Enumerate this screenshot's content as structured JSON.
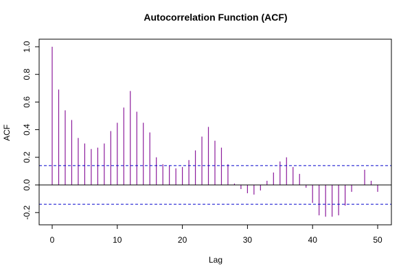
{
  "chart_data": {
    "type": "bar",
    "title": "Autocorrelation Function (ACF)",
    "xlabel": "Lag",
    "ylabel": "ACF",
    "xlim": [
      0,
      50
    ],
    "ylim": [
      -0.3,
      1.0
    ],
    "x_ticks": [
      0,
      10,
      20,
      30,
      40,
      50
    ],
    "y_ticks": [
      -0.2,
      0.0,
      0.2,
      0.4,
      0.6,
      0.8,
      1.0
    ],
    "x_tick_labels": [
      "0",
      "10",
      "20",
      "30",
      "40",
      "50"
    ],
    "y_tick_labels": [
      "-0.2",
      "0.0",
      "0.2",
      "0.4",
      "0.6",
      "0.8",
      "1.0"
    ],
    "confidence_bounds": [
      0.14,
      -0.14
    ],
    "grid": false,
    "series": [
      {
        "lags": [
          0,
          1,
          2,
          3,
          4,
          5,
          6,
          7,
          8,
          9,
          10,
          11,
          12,
          13,
          14,
          15,
          16,
          17,
          18,
          19,
          20,
          21,
          22,
          23,
          24,
          25,
          26,
          27,
          28,
          29,
          30,
          31,
          32,
          33,
          34,
          35,
          36,
          37,
          38,
          39,
          40,
          41,
          42,
          43,
          44,
          45,
          46,
          47,
          48,
          49,
          50
        ],
        "values": [
          1.0,
          0.69,
          0.54,
          0.47,
          0.34,
          0.3,
          0.26,
          0.27,
          0.3,
          0.39,
          0.45,
          0.56,
          0.68,
          0.53,
          0.45,
          0.38,
          0.2,
          0.15,
          0.14,
          0.12,
          0.13,
          0.18,
          0.25,
          0.35,
          0.42,
          0.32,
          0.27,
          0.15,
          0.01,
          -0.03,
          -0.06,
          -0.07,
          -0.04,
          0.03,
          0.09,
          0.17,
          0.2,
          0.13,
          0.08,
          -0.02,
          -0.13,
          -0.22,
          -0.23,
          -0.23,
          -0.22,
          -0.15,
          -0.05,
          0.0,
          0.11,
          0.03,
          -0.05
        ]
      }
    ]
  },
  "colors": {
    "bars": "#8B1A9B",
    "bounds": "#0000CC",
    "zero_line": "#000000",
    "frame": "#000000"
  }
}
